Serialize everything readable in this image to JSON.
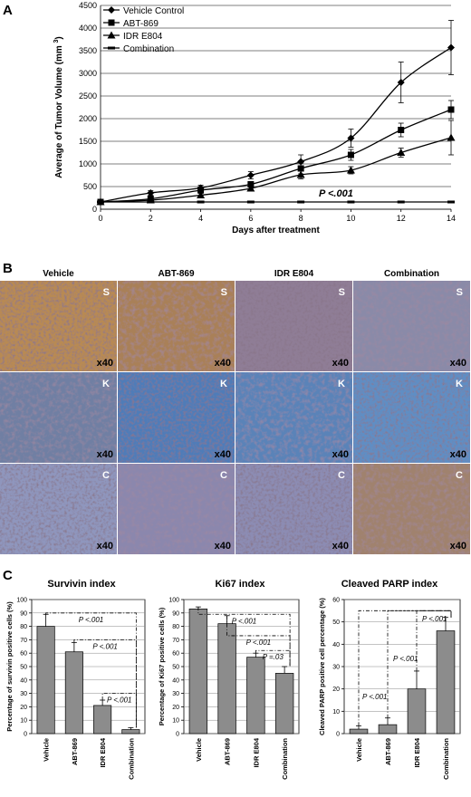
{
  "panels": {
    "A": {
      "letter": "A",
      "chart_data": {
        "type": "line",
        "xlabel": "Days after treatment",
        "ylabel": "Average of Tumor Volume (mm 3)",
        "ylabel_main": "Average of Tumor Volume (mm",
        "ylabel_sup": "3",
        "ylabel_close": ")",
        "xlim": [
          0,
          14
        ],
        "ylim": [
          0,
          4500
        ],
        "x_ticks": [
          "0",
          "2",
          "4",
          "6",
          "8",
          "10",
          "12",
          "14"
        ],
        "y_ticks": [
          "0",
          "500",
          "1000",
          "1500",
          "2000",
          "2500",
          "3000",
          "3500",
          "4000",
          "4500"
        ],
        "grid": "horizontal",
        "legend": "top-left",
        "annotation": "P <.001",
        "x": [
          0,
          2,
          4,
          6,
          8,
          10,
          12,
          14
        ],
        "series": [
          {
            "name": "Vehicle Control",
            "marker": "diamond",
            "values": [
              160,
              360,
              470,
              750,
              1050,
              1570,
              2800,
              3570
            ],
            "errors": [
              30,
              50,
              60,
              80,
              150,
              200,
              450,
              600
            ]
          },
          {
            "name": "ABT-869",
            "marker": "square",
            "values": [
              160,
              230,
              420,
              550,
              900,
              1200,
              1750,
              2200
            ],
            "errors": [
              30,
              40,
              50,
              60,
              120,
              120,
              150,
              200
            ]
          },
          {
            "name": "IDR E804",
            "marker": "triangle",
            "values": [
              160,
              200,
              310,
              460,
              760,
              860,
              1250,
              1580
            ],
            "errors": [
              30,
              30,
              40,
              60,
              90,
              80,
              100,
              380
            ]
          },
          {
            "name": "Combination",
            "marker": "dash",
            "values": [
              160,
              160,
              160,
              160,
              160,
              160,
              160,
              160
            ],
            "errors": [
              10,
              10,
              10,
              10,
              10,
              10,
              10,
              10
            ]
          }
        ]
      }
    },
    "B": {
      "letter": "B",
      "columns": [
        "Vehicle",
        "ABT-869",
        "IDR E804",
        "Combination"
      ],
      "rows": [
        {
          "label": "S",
          "colors": [
            "#b88a52",
            "#a98058",
            "#8f7d96",
            "#8a8aa8"
          ]
        },
        {
          "label": "K",
          "colors": [
            "#6f7fa3",
            "#4f7cb8",
            "#5a83b8",
            "#5f8ec4"
          ]
        },
        {
          "label": "C",
          "colors": [
            "#8f96bd",
            "#8b87ad",
            "#8c8cb3",
            "#a0826e"
          ]
        }
      ],
      "magnification": "x40"
    },
    "C": {
      "letter": "C",
      "charts": [
        {
          "type": "bar",
          "title": "Survivin index",
          "ylabel": "Percentage of survivin positive cells (%)",
          "categories": [
            "Vehicle",
            "ABT-869",
            "IDR E804",
            "Combination"
          ],
          "values": [
            80,
            61,
            21,
            3
          ],
          "errors": [
            9,
            7,
            4,
            1.5
          ],
          "ylim": [
            0,
            100
          ],
          "y_ticks": [
            "0",
            "10",
            "20",
            "30",
            "40",
            "50",
            "60",
            "70",
            "80",
            "90",
            "100"
          ],
          "annotations": [
            {
              "text": "P <.001",
              "from": 0,
              "to": 3,
              "y": 90
            },
            {
              "text": "P <.001",
              "from": 1,
              "to": 3,
              "y": 70
            },
            {
              "text": "P <.001",
              "from": 2,
              "to": 3,
              "y": 30
            }
          ]
        },
        {
          "type": "bar",
          "title": "Ki67 index",
          "ylabel": "Percentage of Ki67 positive  cells (%)",
          "categories": [
            "Vehicle",
            "ABT-869",
            "IDR E804",
            "Combination"
          ],
          "values": [
            93,
            82,
            57,
            45
          ],
          "errors": [
            1.5,
            6,
            3,
            5
          ],
          "ylim": [
            0,
            100
          ],
          "y_ticks": [
            "0",
            "10",
            "20",
            "30",
            "40",
            "50",
            "60",
            "70",
            "80",
            "90",
            "100"
          ],
          "annotations": [
            {
              "text": "P <.001",
              "from": 0,
              "to": 3,
              "y": 89
            },
            {
              "text": "P <.001",
              "from": 1,
              "to": 3,
              "y": 73
            },
            {
              "text": "P =.03",
              "from": 2,
              "to": 3,
              "y": 62
            }
          ]
        },
        {
          "type": "bar",
          "title": "Cleaved PARP index",
          "ylabel": "Cleaved PARP positive cell percentage (%)",
          "categories": [
            "Vehicle",
            "ABT-869",
            "IDR E804",
            "Combination"
          ],
          "values": [
            2,
            4,
            20,
            46
          ],
          "errors": [
            1.5,
            3,
            8,
            6
          ],
          "ylim": [
            0,
            60
          ],
          "y_ticks": [
            "0",
            "10",
            "20",
            "30",
            "40",
            "50",
            "60"
          ],
          "annotations": [
            {
              "text": "P <.001",
              "from": 0,
              "to": 3,
              "y": 55
            },
            {
              "text": "P <.001",
              "from": 1,
              "to": 3,
              "y": 55
            },
            {
              "text": "P <.001",
              "from": 2,
              "to": 3,
              "y": 55
            }
          ]
        }
      ]
    }
  }
}
